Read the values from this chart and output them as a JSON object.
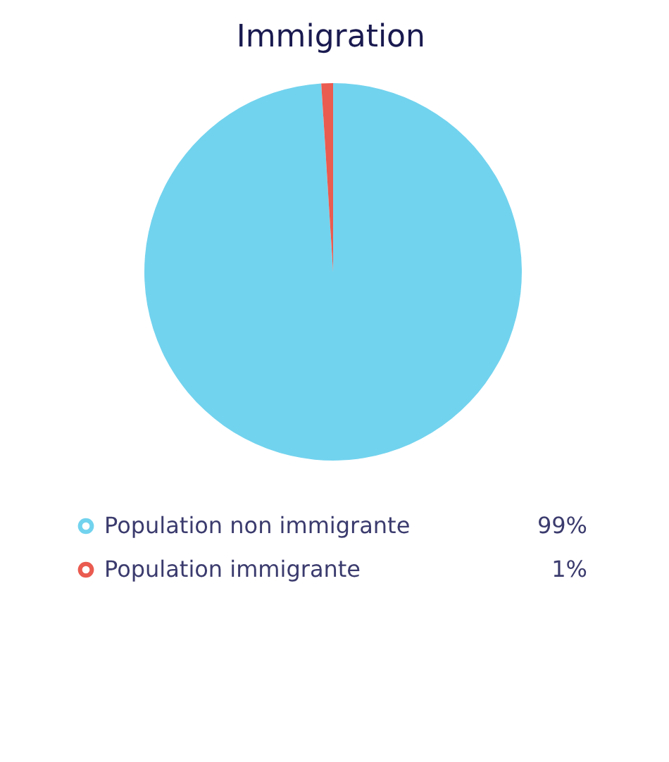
{
  "chart_data": {
    "type": "pie",
    "title": "Immigration",
    "categories": [
      "Population non immigrante",
      "Population immigrante"
    ],
    "values": [
      99,
      1
    ],
    "value_labels": [
      "99%",
      "1%"
    ],
    "colors": [
      "#72d3ee",
      "#ea5b50"
    ],
    "legend": "bottom"
  }
}
